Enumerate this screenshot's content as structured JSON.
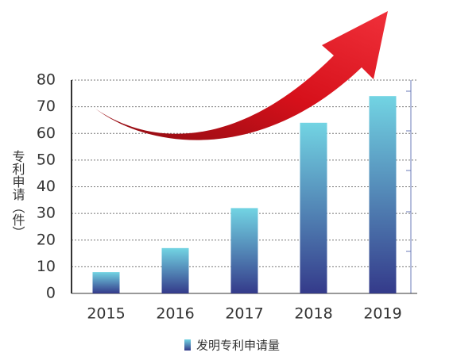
{
  "chart_data": {
    "type": "bar",
    "y_label": "专利申请（件）",
    "categories": [
      "2015",
      "2016",
      "2017",
      "2018",
      "2019"
    ],
    "series": [
      {
        "name": "发明专利申请量",
        "gradient": [
          "#72d4e3",
          "#343a8a"
        ],
        "values": [
          8,
          17,
          32,
          64,
          74
        ]
      }
    ],
    "ylim": [
      0,
      80
    ],
    "yticks": [
      0,
      10,
      20,
      30,
      40,
      50,
      60,
      70,
      80
    ],
    "grid": true
  }
}
